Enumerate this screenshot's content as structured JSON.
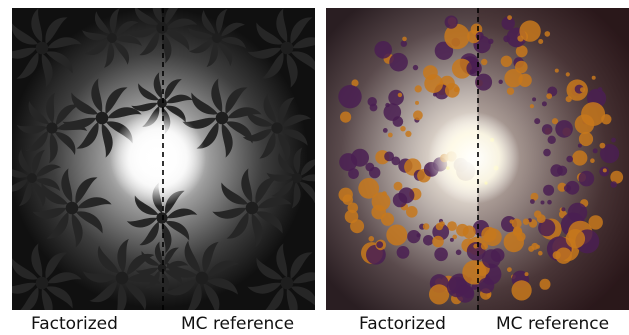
{
  "figure": {
    "panels": [
      {
        "left_caption": "Factorized",
        "right_caption": "MC reference",
        "scene": "damask-texture",
        "colors": {
          "background": "#000000",
          "pattern": "#3a3a3a",
          "light": "#ffffff"
        }
      },
      {
        "left_caption": "Factorized",
        "right_caption": "MC reference",
        "scene": "dots-sphere",
        "colors": {
          "orange": "#c7781c",
          "purple": "#4a1f52",
          "yellow": "#f2e83a",
          "light": "#fffdf2"
        }
      }
    ],
    "divider_style": "dashed-black"
  }
}
